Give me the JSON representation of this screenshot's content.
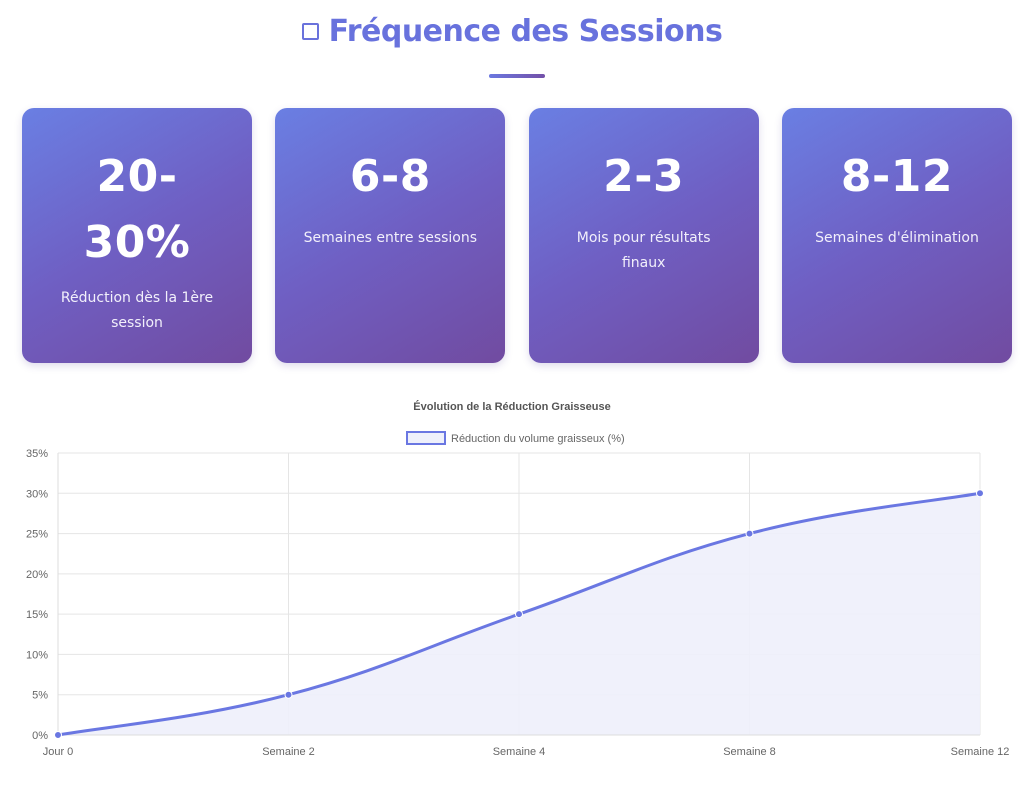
{
  "header": {
    "title": "Fréquence des Sessions",
    "icon": "square-outline-icon",
    "accent_color": "#6872dd"
  },
  "stats": [
    {
      "value": "20-30%",
      "label": "Réduction dès la 1ère session"
    },
    {
      "value": "6-8",
      "label": "Semaines entre sessions"
    },
    {
      "value": "2-3",
      "label": "Mois pour résultats finaux"
    },
    {
      "value": "8-12",
      "label": "Semaines d'élimination"
    }
  ],
  "chart_data": {
    "type": "line",
    "title": "Évolution de la Réduction Graisseuse",
    "categories": [
      "Jour 0",
      "Semaine 2",
      "Semaine 4",
      "Semaine 8",
      "Semaine 12"
    ],
    "series": [
      {
        "name": "Réduction du volume graisseux (%)",
        "values": [
          0,
          5,
          15,
          25,
          30
        ],
        "color": "#6a77e2",
        "fill": "#eef0fb"
      }
    ],
    "ylim": [
      0,
      35
    ],
    "y_ticks": [
      "0%",
      "5%",
      "10%",
      "15%",
      "20%",
      "25%",
      "30%",
      "35%"
    ],
    "grid": true,
    "legend": "top-center",
    "area_fill": true
  }
}
